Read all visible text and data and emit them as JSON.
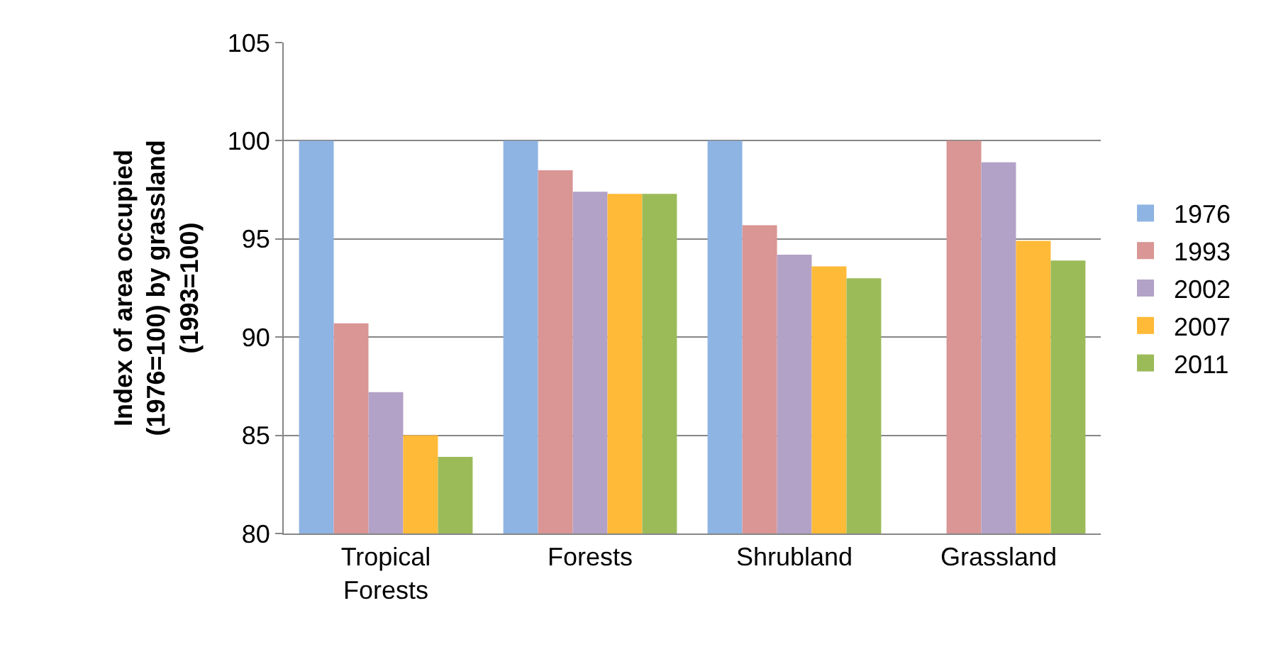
{
  "chart_data": {
    "type": "bar",
    "ylabel": "Index of area occupied\n(1976=100) by grassland\n(1993=100)",
    "categories": [
      "Tropical\nForests",
      "Forests",
      "Shrubland",
      "Grassland"
    ],
    "series": [
      {
        "name": "1976",
        "color": "#8eb4e3",
        "values": [
          100,
          100,
          100,
          null
        ]
      },
      {
        "name": "1993",
        "color": "#d99694",
        "values": [
          90.7,
          98.5,
          95.7,
          100
        ]
      },
      {
        "name": "2002",
        "color": "#b3a2c7",
        "values": [
          87.2,
          97.4,
          94.2,
          98.9
        ]
      },
      {
        "name": "2007",
        "color": "#ffba38",
        "values": [
          85.0,
          97.3,
          93.6,
          94.9
        ]
      },
      {
        "name": "2011",
        "color": "#9bbb59",
        "values": [
          83.9,
          97.3,
          93.0,
          93.9
        ]
      }
    ],
    "ylim": [
      80,
      105
    ],
    "yticks": [
      80,
      85,
      90,
      95,
      100,
      105
    ],
    "grid": "y",
    "legend": "right"
  }
}
